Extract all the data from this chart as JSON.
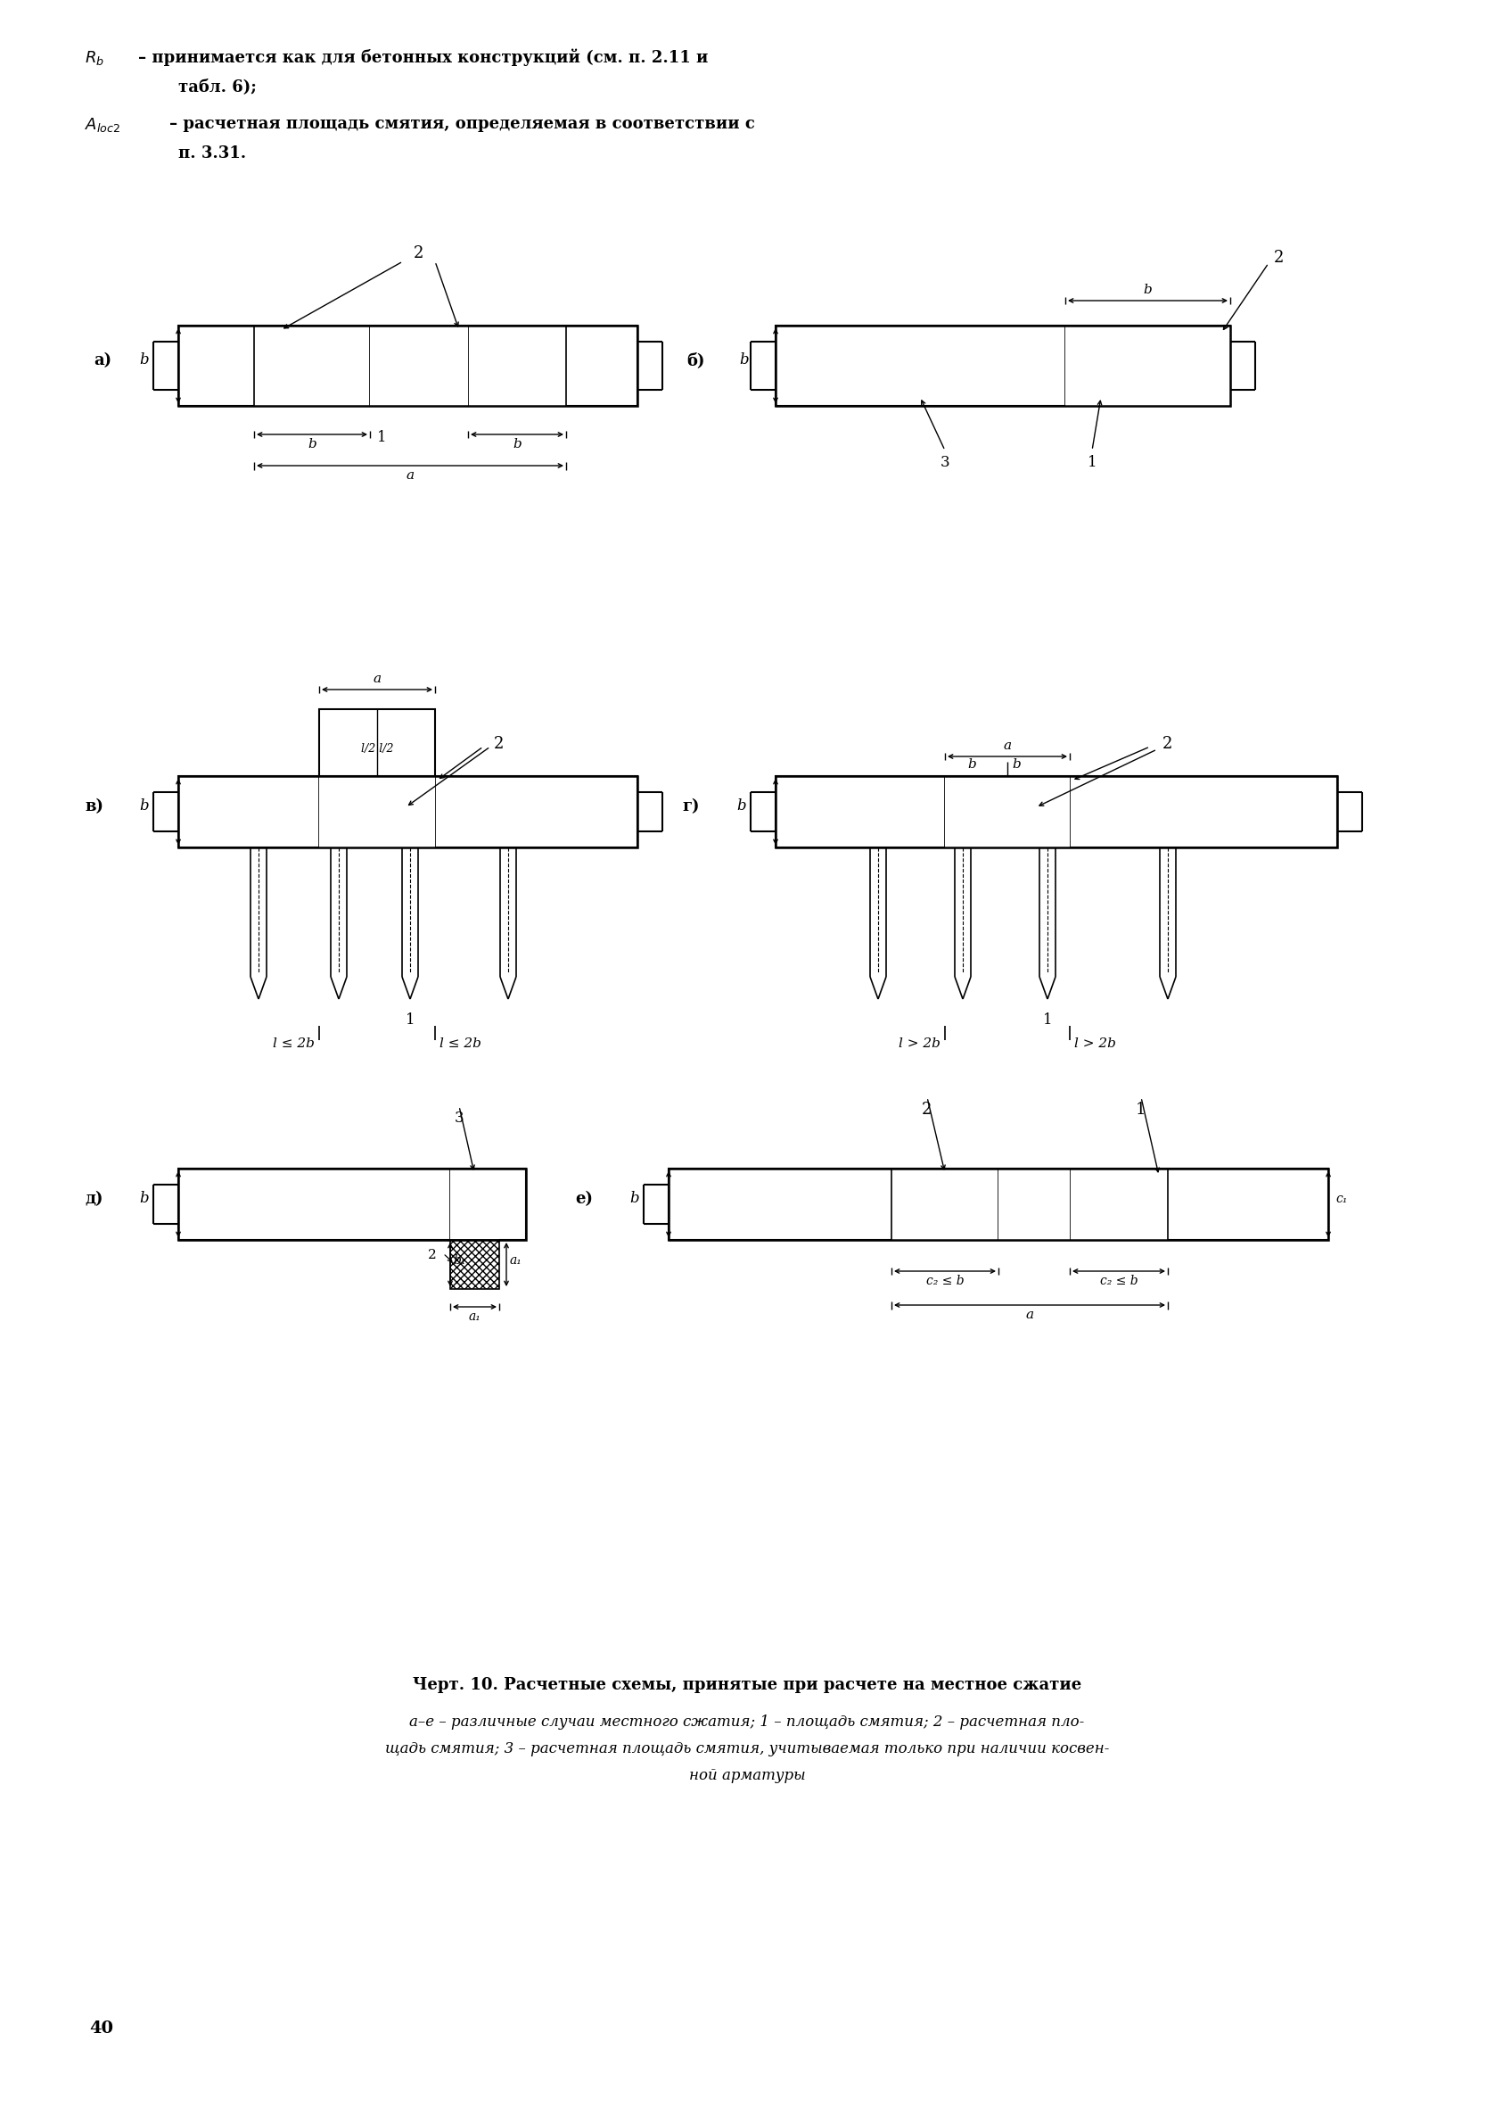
{
  "bg_color": "#ffffff",
  "fg_color": "#000000",
  "page_number": "40",
  "title": "Черт. 10. Расчетные схемы, принятые при расчете на местное сжатие",
  "cap1": "а–е – различные случаи местного сжатия; 1 – площадь смятия; 2 – расчетная пло-",
  "cap2": "щадь смятия; 3 – расчетная площадь смятия, учитываемая только при наличии косвен-",
  "cap3": "ной арматуры",
  "h1a": "R",
  "h1b": "b",
  "h1c": " – принимается как для бетонных конструкций (см. п. 2.11 и",
  "h2": "     табл. 6);",
  "h3a": "A",
  "h3b": "loc2",
  "h3c": " – расчетная площадь смятия, определяемая в соответствии с",
  "h4": "     п. 3.31."
}
